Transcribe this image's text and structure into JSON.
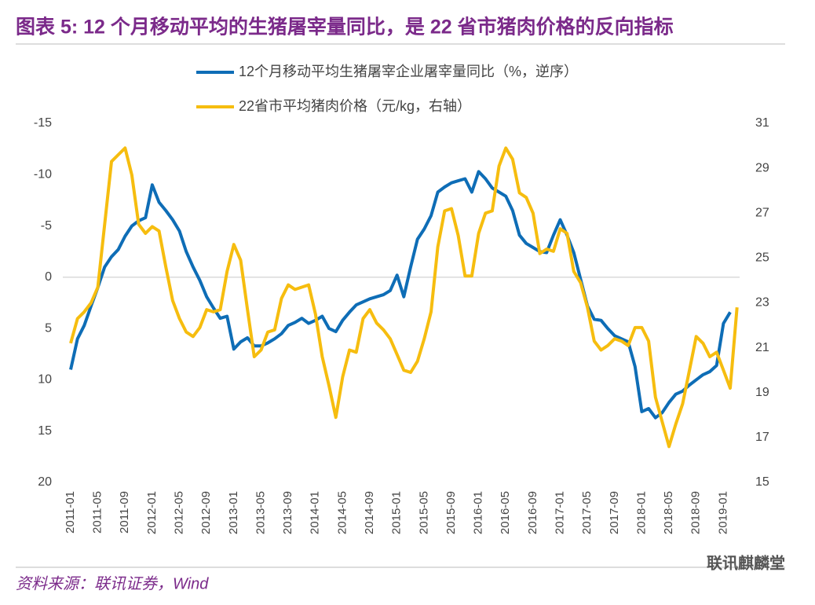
{
  "chart_data": {
    "type": "line",
    "title": "图表 5: 12 个月移动平均的生猪屠宰量同比，是 22 省市猪肉价格的反向指标",
    "source": "资料来源：联讯证券，Wind",
    "watermark": "联讯麒麟堂",
    "categories": [
      "2011-01",
      null,
      null,
      null,
      "2011-05",
      null,
      null,
      null,
      "2011-09",
      null,
      null,
      null,
      "2012-01",
      null,
      null,
      null,
      "2012-05",
      null,
      null,
      null,
      "2012-09",
      null,
      null,
      null,
      "2013-01",
      null,
      null,
      null,
      "2013-05",
      null,
      null,
      null,
      "2013-09",
      null,
      null,
      null,
      "2014-01",
      null,
      null,
      null,
      "2014-05",
      null,
      null,
      null,
      "2014-09",
      null,
      null,
      null,
      "2015-01",
      null,
      null,
      null,
      "2015-05",
      null,
      null,
      null,
      "2015-09",
      null,
      null,
      null,
      "2016-01",
      null,
      null,
      null,
      "2016-05",
      null,
      null,
      null,
      "2016-09",
      null,
      null,
      null,
      "2017-01",
      null,
      null,
      null,
      "2017-05",
      null,
      null,
      null,
      "2017-09",
      null,
      null,
      null,
      "2018-01",
      null,
      null,
      null,
      "2018-05",
      null,
      null,
      null,
      "2018-09",
      null,
      null,
      null,
      "2019-01",
      null,
      null
    ],
    "series": [
      {
        "name": "12个月移动平均生猪屠宰企业屠宰量同比（%，逆序）",
        "color": "#0e6db6",
        "axis": "y",
        "values": [
          9.0,
          6,
          4.7,
          2.8,
          1,
          -1,
          -2,
          -2.7,
          -4,
          -5,
          -5.5,
          -5.8,
          -9,
          -7.3,
          -6.5,
          -5.6,
          -4.5,
          -2.5,
          -1,
          0.3,
          1.9,
          3,
          4,
          3.8,
          7,
          6.3,
          5.9,
          6.7,
          6.7,
          6.4,
          6,
          5.5,
          4.7,
          4.4,
          4,
          4.5,
          4.2,
          3.8,
          5,
          5.3,
          4.2,
          3.4,
          2.7,
          2.4,
          2.1,
          1.9,
          1.7,
          1.3,
          -0.2,
          1.9,
          -1,
          -3.7,
          -4.7,
          -6,
          -8.3,
          -8.8,
          -9.2,
          -9.4,
          -9.6,
          -8.3,
          -10.3,
          -9.6,
          -8.7,
          -8.3,
          -7.9,
          -6.5,
          -4.1,
          -3.3,
          -2.9,
          -2.5,
          -2.4,
          -4.1,
          -5.6,
          -4.1,
          -2.4,
          0.2,
          2.8,
          4.1,
          4.2,
          5,
          5.7,
          6,
          6.3,
          8.7,
          13.1,
          12.8,
          13.7,
          13.2,
          12.2,
          11.4,
          11.1,
          10.5,
          10,
          9.5,
          9.2,
          8.6,
          4.5,
          3.4,
          null
        ]
      },
      {
        "name": "22省市平均猪肉价格（元/kg，右轴）",
        "color": "#f6bd0f",
        "axis": "y2",
        "values": [
          21.2,
          22.3,
          22.6,
          23,
          23.7,
          26.5,
          29.3,
          29.6,
          29.9,
          28.7,
          26.5,
          26.1,
          26.4,
          26.2,
          24.6,
          23.1,
          22.3,
          21.7,
          21.5,
          21.9,
          22.7,
          22.6,
          22.7,
          24.4,
          25.6,
          24.9,
          22.7,
          20.6,
          20.9,
          21.7,
          21.8,
          23.2,
          23.8,
          23.6,
          23.7,
          23.8,
          22.5,
          20.6,
          19.3,
          17.9,
          19.7,
          20.9,
          20.8,
          22.3,
          22.7,
          22.1,
          21.8,
          21.4,
          20.7,
          20,
          19.9,
          20.4,
          21.4,
          22.6,
          25.5,
          27.1,
          27.2,
          26,
          24.2,
          24.2,
          26.1,
          27,
          27.1,
          29.1,
          29.9,
          29.4,
          27.9,
          27.7,
          27,
          25.2,
          25.4,
          25.3,
          26.3,
          26.1,
          24.4,
          23.9,
          22.8,
          21.3,
          20.9,
          21.1,
          21.4,
          21.3,
          21.1,
          21.9,
          21.9,
          21.3,
          18.8,
          17.7,
          16.6,
          17.6,
          18.5,
          20,
          21.5,
          21.2,
          20.6,
          20.8,
          20,
          19.2,
          22.8
        ]
      }
    ],
    "ylim": [
      -15,
      20
    ],
    "y_reversed": true,
    "yticks": [
      -15,
      -10,
      -5,
      0,
      5,
      10,
      15,
      20
    ],
    "y2lim": [
      15,
      31
    ],
    "y2ticks": [
      15,
      17,
      19,
      21,
      23,
      25,
      27,
      29,
      31
    ],
    "grid": false
  }
}
